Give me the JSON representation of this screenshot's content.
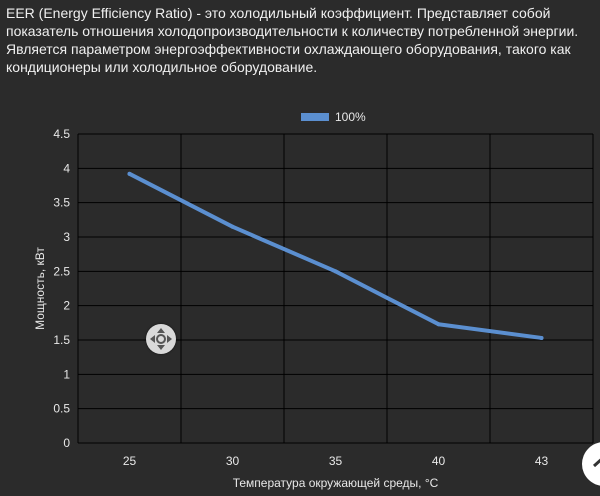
{
  "description": "EER (Energy Efficiency Ratio) - это холодильный коэффициент. Представляет собой показатель отношения холодопроизводительности к количеству потребленной энергии. Является параметром энергоэффективности охлаждающего оборудования, такого как кондиционеры или холодильное оборудование.",
  "colors": {
    "background": "#2b2b2b",
    "series": "#5b8fd0",
    "grid": "#000000",
    "text": "#e8e8e8",
    "handle": "#d9d9d9"
  },
  "icons": {
    "move_handle": "move-arrows-icon",
    "corner_button": "chevron-up-icon"
  },
  "chart_data": {
    "type": "line",
    "title": "",
    "xlabel": "Температура окружающей среды, °C",
    "ylabel": "Мощность, кВт",
    "x_categories": [
      "25",
      "30",
      "35",
      "40",
      "43"
    ],
    "y_ticks": [
      "0",
      "0.5",
      "1",
      "1.5",
      "2",
      "2.5",
      "3",
      "3.5",
      "4",
      "4.5"
    ],
    "ylim": [
      0,
      4.5
    ],
    "grid": true,
    "legend_position": "top-center",
    "series": [
      {
        "name": "100%",
        "x": [
          25,
          30,
          35,
          40,
          43
        ],
        "values": [
          3.92,
          3.15,
          2.5,
          1.73,
          1.53
        ]
      }
    ]
  }
}
